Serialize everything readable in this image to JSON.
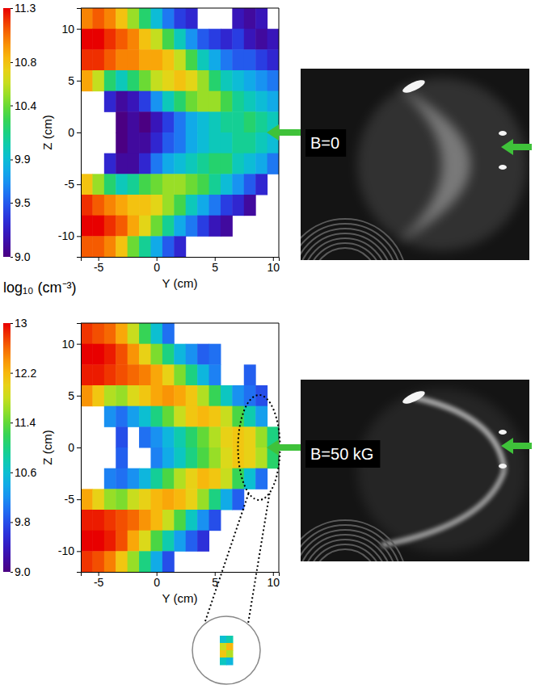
{
  "chart_data": [
    {
      "type": "heatmap",
      "annotation": "B=0",
      "x_label": "Y (cm)",
      "y_label": "Z (cm)",
      "xlim": [
        -6.5,
        10.5
      ],
      "xticks": [
        -5,
        0,
        5,
        10
      ],
      "ylim": [
        -12,
        12
      ],
      "yticks": [
        -10,
        -5,
        0,
        5,
        10
      ],
      "x": [
        -6,
        -5,
        -4,
        -3,
        -2,
        -1,
        0,
        1,
        2,
        3,
        4,
        5,
        6,
        7,
        8,
        9,
        10
      ],
      "y": [
        11,
        9,
        7,
        5,
        3,
        1,
        -1,
        -3,
        -5,
        -7,
        -9,
        -11
      ],
      "cells": [
        [
          11.0,
          11.1,
          11.0,
          10.8,
          10.5,
          10.2,
          9.9,
          9.6,
          9.4,
          9.3,
          null,
          null,
          null,
          9.2,
          9.1,
          9.2,
          null
        ],
        [
          11.3,
          11.3,
          11.2,
          11.1,
          11.0,
          10.8,
          10.6,
          10.3,
          10.0,
          9.7,
          9.5,
          9.4,
          9.3,
          9.4,
          9.2,
          9.1,
          9.2
        ],
        [
          11.2,
          11.2,
          11.1,
          11.0,
          11.0,
          10.9,
          10.9,
          10.8,
          10.6,
          10.3,
          10.0,
          9.8,
          9.6,
          9.5,
          9.5,
          9.4,
          9.3
        ],
        [
          10.9,
          10.6,
          10.2,
          10.0,
          10.2,
          10.4,
          10.6,
          10.7,
          10.8,
          10.7,
          10.5,
          10.2,
          10.0,
          9.9,
          9.8,
          9.7,
          9.6
        ],
        [
          null,
          null,
          9.3,
          9.1,
          9.2,
          9.4,
          9.7,
          10.0,
          10.2,
          10.4,
          10.5,
          10.5,
          10.3,
          10.1,
          10.0,
          9.9,
          9.8
        ],
        [
          null,
          null,
          null,
          9.0,
          9.1,
          9.0,
          9.2,
          9.4,
          9.6,
          9.8,
          9.9,
          10.0,
          10.1,
          10.1,
          10.2,
          10.1,
          10.0
        ],
        [
          null,
          null,
          null,
          9.0,
          9.1,
          9.1,
          9.3,
          9.5,
          9.6,
          9.8,
          9.9,
          10.0,
          10.0,
          10.1,
          10.1,
          10.0,
          9.9
        ],
        [
          null,
          null,
          9.3,
          9.1,
          9.1,
          9.3,
          9.6,
          9.8,
          9.9,
          10.0,
          10.1,
          10.2,
          10.2,
          10.0,
          9.9,
          9.8,
          9.6
        ],
        [
          10.8,
          10.5,
          10.2,
          10.0,
          10.1,
          10.3,
          10.4,
          10.5,
          10.5,
          10.4,
          10.3,
          10.1,
          9.9,
          9.7,
          9.5,
          9.3,
          null
        ],
        [
          11.2,
          11.1,
          11.0,
          10.9,
          10.8,
          10.8,
          10.7,
          10.5,
          10.3,
          10.0,
          9.8,
          9.6,
          9.4,
          9.3,
          9.1,
          null,
          null
        ],
        [
          11.3,
          11.3,
          11.2,
          11.1,
          10.9,
          10.7,
          10.4,
          10.1,
          9.8,
          9.6,
          9.4,
          9.2,
          9.1,
          null,
          null,
          null,
          null
        ],
        [
          11.1,
          11.1,
          11.0,
          10.8,
          10.4,
          10.1,
          9.8,
          9.5,
          9.3,
          null,
          null,
          null,
          null,
          null,
          null,
          null,
          null
        ]
      ],
      "colorbar": {
        "range": [
          9,
          11.3
        ],
        "ticks": [
          {
            "value": 9,
            "label": "9.0"
          },
          9.5,
          9.9,
          10.4,
          10.8,
          11.3
        ]
      }
    },
    {
      "type": "heatmap",
      "annotation": "B=50 kG",
      "x_label": "Y (cm)",
      "y_label": "Z (cm)",
      "xlim": [
        -6.5,
        10.5
      ],
      "xticks": [
        -5,
        0,
        5,
        10
      ],
      "ylim": [
        -12,
        12
      ],
      "yticks": [
        -10,
        -5,
        0,
        5,
        10
      ],
      "x": [
        -6,
        -5,
        -4,
        -3,
        -2,
        -1,
        0,
        1,
        2,
        3,
        4,
        5,
        6,
        7,
        8,
        9,
        10
      ],
      "y": [
        11,
        9,
        7,
        5,
        3,
        1,
        -1,
        -3,
        -5,
        -7,
        -9,
        -11
      ],
      "cells": [
        [
          12.8,
          12.7,
          12.6,
          12.3,
          11.8,
          11.2,
          10.6,
          10.0,
          null,
          null,
          null,
          null,
          null,
          null,
          null,
          null,
          null
        ],
        [
          13.0,
          13.0,
          12.9,
          12.7,
          12.4,
          12.0,
          11.5,
          11.0,
          10.5,
          10.2,
          9.9,
          10.0,
          null,
          null,
          null,
          null,
          null
        ],
        [
          12.9,
          12.9,
          12.8,
          12.7,
          12.6,
          12.5,
          12.3,
          12.0,
          11.5,
          11.0,
          10.5,
          10.1,
          null,
          null,
          9.9,
          null,
          null
        ],
        [
          12.4,
          12.1,
          11.7,
          11.6,
          11.9,
          12.1,
          12.3,
          12.4,
          12.3,
          12.1,
          11.7,
          11.2,
          10.7,
          10.2,
          10.0,
          9.8,
          null
        ],
        [
          null,
          null,
          10.2,
          10.0,
          10.3,
          10.6,
          11.0,
          11.4,
          11.8,
          12.1,
          12.2,
          12.1,
          11.8,
          11.3,
          10.8,
          10.3,
          null
        ],
        [
          null,
          null,
          null,
          9.8,
          null,
          10.0,
          10.2,
          10.5,
          10.8,
          11.1,
          11.4,
          11.7,
          12.0,
          12.1,
          12.0,
          11.6,
          11.0
        ],
        [
          null,
          null,
          null,
          9.9,
          null,
          null,
          10.1,
          10.4,
          10.7,
          11.0,
          11.3,
          11.6,
          11.9,
          12.1,
          12.0,
          11.7,
          11.1
        ],
        [
          null,
          null,
          10.1,
          10.0,
          10.2,
          10.5,
          10.9,
          11.3,
          11.7,
          12.0,
          12.2,
          12.1,
          11.8,
          11.2,
          10.6,
          10.0,
          null
        ],
        [
          12.3,
          12.0,
          11.6,
          11.5,
          11.8,
          12.0,
          12.2,
          12.3,
          12.2,
          12.0,
          11.6,
          11.0,
          10.4,
          9.9,
          null,
          null,
          null
        ],
        [
          12.9,
          12.9,
          12.8,
          12.7,
          12.6,
          12.4,
          12.2,
          11.8,
          11.3,
          10.7,
          10.2,
          9.8,
          null,
          null,
          null,
          null,
          null
        ],
        [
          13.0,
          13.0,
          12.9,
          12.7,
          12.3,
          11.9,
          11.3,
          10.8,
          10.3,
          9.9,
          9.6,
          null,
          null,
          null,
          null,
          null,
          null
        ],
        [
          12.8,
          12.7,
          12.5,
          12.1,
          11.6,
          11.0,
          10.4,
          9.8,
          null,
          null,
          null,
          null,
          null,
          null,
          null,
          null,
          null
        ]
      ],
      "inset": {
        "cells": [
          [
            10.6,
            10.8
          ],
          [
            11.8,
            12.2
          ],
          [
            12.1,
            11.7
          ],
          [
            10.7,
            10.5
          ]
        ]
      },
      "colorbar": {
        "range": [
          9,
          13
        ],
        "ticks": [
          {
            "value": 9,
            "label": "9.0"
          },
          9.8,
          10.6,
          11.4,
          12.2,
          13
        ],
        "title": "log₁₀ (cm⁻³)"
      }
    }
  ]
}
